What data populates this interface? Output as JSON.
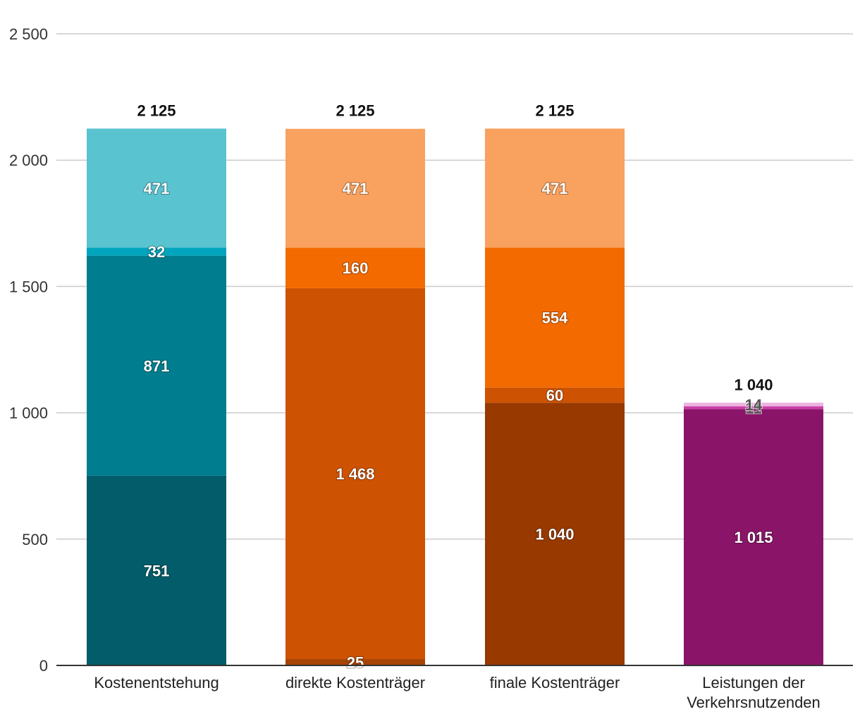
{
  "chart_data": {
    "type": "bar",
    "stacked": true,
    "title": "",
    "xlabel": "",
    "ylabel": "",
    "ylim": [
      0,
      2500
    ],
    "yticks": [
      0,
      500,
      1000,
      1500,
      2000,
      2500
    ],
    "ytick_labels": [
      "0",
      "500",
      "1 000",
      "1 500",
      "2 000",
      "2 500"
    ],
    "grid": true,
    "categories": [
      {
        "label": [
          "Kostenentstehung"
        ],
        "total": 2125,
        "total_label": "2 125",
        "segments": [
          {
            "value": 751,
            "label": "751",
            "color": "#025c69"
          },
          {
            "value": 871,
            "label": "871",
            "color": "#007e8f"
          },
          {
            "value": 32,
            "label": "32",
            "color": "#00a4bd"
          },
          {
            "value": 471,
            "label": "471",
            "color": "#5ac3d0"
          }
        ]
      },
      {
        "label": [
          "direkte Kostenträger"
        ],
        "total": 2125,
        "total_label": "2 125",
        "segments": [
          {
            "value": 25,
            "label": "25",
            "color": "#a64305"
          },
          {
            "value": 1468,
            "label": "1 468",
            "color": "#cd5201"
          },
          {
            "value": 160,
            "label": "160",
            "color": "#f26a00"
          },
          {
            "value": 471,
            "label": "471",
            "color": "#f9a15e"
          }
        ]
      },
      {
        "label": [
          "finale Kostenträger"
        ],
        "total": 2125,
        "total_label": "2 125",
        "segments": [
          {
            "value": 1040,
            "label": "1 040",
            "color": "#983900"
          },
          {
            "value": 60,
            "label": "60",
            "color": "#cd5201"
          },
          {
            "value": 554,
            "label": "554",
            "color": "#f26a00"
          },
          {
            "value": 471,
            "label": "471",
            "color": "#f9a15e"
          }
        ]
      },
      {
        "label": [
          "Leistungen der",
          "Verkehrsnutzenden"
        ],
        "total": 1040,
        "total_label": "1 040",
        "segments": [
          {
            "value": 1015,
            "label": "1 015",
            "color": "#8a1568"
          },
          {
            "value": 11,
            "label": "11",
            "color": "#cc3fa8",
            "dark": true
          },
          {
            "value": 14,
            "label": "14",
            "color": "#ecb4df",
            "dark": true
          }
        ]
      }
    ]
  }
}
